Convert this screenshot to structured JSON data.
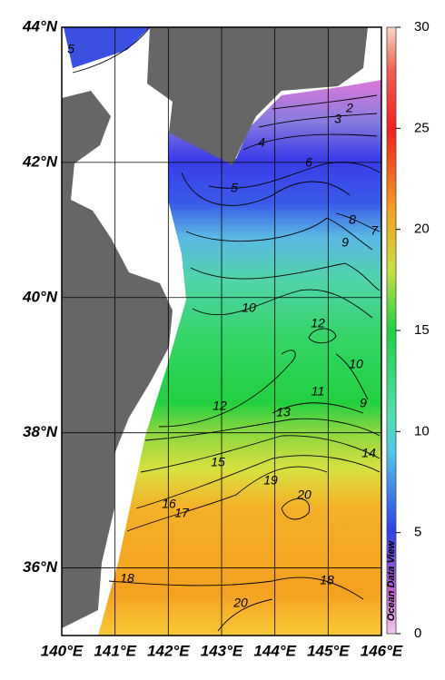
{
  "map": {
    "xlim": [
      140,
      146
    ],
    "ylim": [
      35,
      44
    ],
    "xticks": [
      {
        "value": 140,
        "label": "140°E"
      },
      {
        "value": 141,
        "label": "141°E"
      },
      {
        "value": 142,
        "label": "142°E"
      },
      {
        "value": 143,
        "label": "143°E"
      },
      {
        "value": 144,
        "label": "144°E"
      },
      {
        "value": 145,
        "label": "145°E"
      },
      {
        "value": 146,
        "label": "146°E"
      }
    ],
    "yticks": [
      {
        "value": 36,
        "label": "36°N"
      },
      {
        "value": 38,
        "label": "38°N"
      },
      {
        "value": 40,
        "label": "40°N"
      },
      {
        "value": 42,
        "label": "42°N"
      },
      {
        "value": 44,
        "label": "44°N"
      }
    ],
    "colorbar": {
      "lim": [
        0,
        30
      ],
      "ticks": [
        0,
        5,
        10,
        15,
        20,
        25,
        30
      ]
    },
    "contour_labels": [
      5,
      2,
      3,
      4,
      5,
      6,
      8,
      9,
      7,
      10,
      12,
      10,
      11,
      9,
      12,
      13,
      14,
      15,
      19,
      20,
      16,
      17,
      18,
      18,
      20
    ],
    "watermark": "Ocean Data View"
  }
}
